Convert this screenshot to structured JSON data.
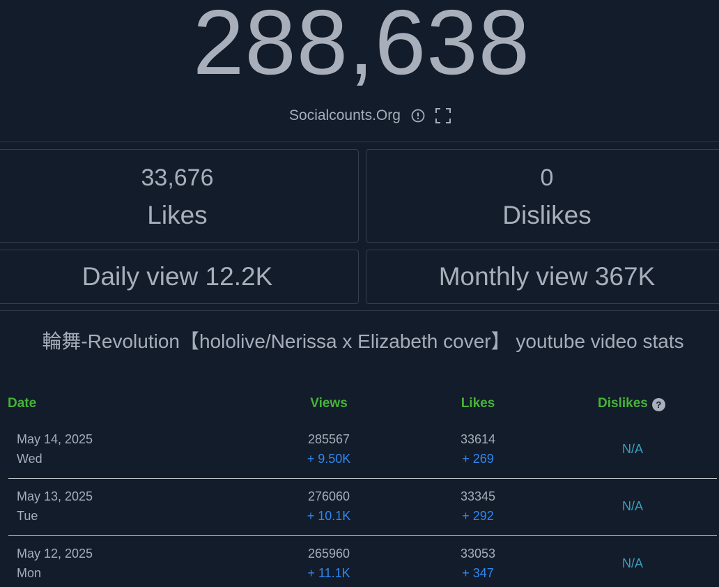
{
  "counter": {
    "value": "288,638",
    "source": "Socialcounts.Org"
  },
  "icons": {
    "info": "info-circle-icon",
    "fullscreen": "fullscreen-icon",
    "help": "question-icon"
  },
  "stats": {
    "likes_value": "33,676",
    "likes_label": "Likes",
    "dislikes_value": "0",
    "dislikes_label": "Dislikes",
    "daily": "Daily view 12.2K",
    "monthly": "Monthly view 367K"
  },
  "video": {
    "title": "輪舞-Revolution【hololive/Nerissa x Elizabeth cover】 youtube video stats"
  },
  "table": {
    "headers": {
      "date": "Date",
      "views": "Views",
      "likes": "Likes",
      "dislikes": "Dislikes",
      "help": "?"
    },
    "rows": [
      {
        "date": "May 14, 2025",
        "day": "Wed",
        "views": "285567",
        "views_delta": "+ 9.50K",
        "likes": "33614",
        "likes_delta": "+ 269",
        "dislikes": "N/A"
      },
      {
        "date": "May 13, 2025",
        "day": "Tue",
        "views": "276060",
        "views_delta": "+ 10.1K",
        "likes": "33345",
        "likes_delta": "+ 292",
        "dislikes": "N/A"
      },
      {
        "date": "May 12, 2025",
        "day": "Mon",
        "views": "265960",
        "views_delta": "+ 11.1K",
        "likes": "33053",
        "likes_delta": "+ 347",
        "dislikes": "N/A"
      }
    ]
  },
  "colors": {
    "background": "#131c2a",
    "text": "#a6adba",
    "header_green": "#46b337",
    "delta_blue": "#2f87f0",
    "na_teal": "#3aa0c2"
  }
}
